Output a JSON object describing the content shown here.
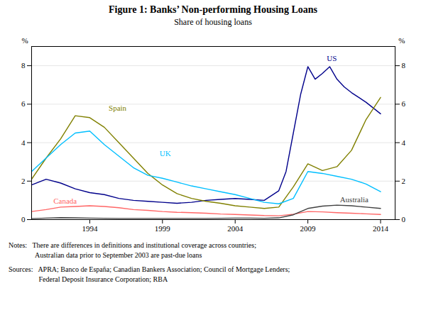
{
  "chart_data": {
    "type": "line",
    "title": "Figure 1: Banks’ Non-performing Housing Loans",
    "subtitle": "Share of housing loans",
    "ylabel": "%",
    "y2label": "%",
    "xlim": [
      1990,
      2015
    ],
    "xticks": [
      1994,
      1999,
      2004,
      2009,
      2014
    ],
    "ylim": [
      0,
      9
    ],
    "yticks": [
      0,
      2,
      4,
      6,
      8
    ],
    "grid": "y",
    "notes": "Notes:  There are differences in definitions and institutional coverage across countries;\n        Australian data prior to September 2003 are past-due loans",
    "sources": "Sources:  APRA; Banco de España; Canadian Bankers Association; Council of Mortgage Lenders;\n         Federal Deposit Insurance Corporation; RBA",
    "series": [
      {
        "name": "US",
        "color": "#00008B",
        "x": [
          1990,
          1991,
          1992,
          1993,
          1994,
          1995,
          1996,
          1997,
          1998,
          1999,
          2000,
          2001,
          2002,
          2003,
          2004,
          2005,
          2006,
          2007,
          2007.5,
          2008,
          2008.5,
          2009,
          2009.5,
          2010,
          2010.5,
          2011,
          2011.5,
          2012,
          2013,
          2014
        ],
        "values": [
          1.8,
          2.1,
          1.9,
          1.6,
          1.4,
          1.3,
          1.1,
          1.0,
          0.95,
          0.9,
          0.85,
          0.9,
          1.0,
          1.05,
          1.1,
          1.05,
          1.0,
          1.5,
          2.5,
          4.5,
          6.5,
          7.95,
          7.3,
          7.6,
          7.95,
          7.3,
          6.9,
          6.6,
          6.1,
          5.5
        ]
      },
      {
        "name": "Spain",
        "color": "#808000",
        "x": [
          1990,
          1991,
          1992,
          1993,
          1994,
          1995,
          1996,
          1997,
          1998,
          1999,
          2000,
          2001,
          2002,
          2003,
          2004,
          2005,
          2006,
          2007,
          2008,
          2009,
          2010,
          2011,
          2012,
          2013,
          2014
        ],
        "values": [
          2.1,
          3.2,
          4.2,
          5.4,
          5.3,
          4.8,
          4.0,
          3.2,
          2.4,
          1.8,
          1.35,
          1.1,
          0.95,
          0.85,
          0.72,
          0.65,
          0.58,
          0.65,
          1.7,
          2.9,
          2.55,
          2.75,
          3.6,
          5.2,
          6.35
        ]
      },
      {
        "name": "UK",
        "color": "#00BFFF",
        "x": [
          1990,
          1991,
          1992,
          1993,
          1994,
          1995,
          1996,
          1997,
          1998,
          1999,
          2000,
          2001,
          2002,
          2003,
          2004,
          2005,
          2006,
          2007,
          2008,
          2009,
          2010,
          2011,
          2012,
          2013,
          2014
        ],
        "values": [
          2.5,
          3.2,
          3.9,
          4.5,
          4.6,
          3.9,
          3.3,
          2.7,
          2.3,
          2.15,
          1.95,
          1.75,
          1.6,
          1.45,
          1.3,
          1.1,
          0.9,
          0.82,
          1.1,
          2.5,
          2.4,
          2.25,
          2.1,
          1.85,
          1.45
        ]
      },
      {
        "name": "Canada",
        "color": "#FF6666",
        "x": [
          1990,
          1991,
          1992,
          1993,
          1994,
          1995,
          1996,
          1997,
          1998,
          1999,
          2000,
          2001,
          2002,
          2003,
          2004,
          2005,
          2006,
          2007,
          2008,
          2009,
          2010,
          2011,
          2012,
          2013,
          2014
        ],
        "values": [
          0.42,
          0.52,
          0.65,
          0.68,
          0.72,
          0.68,
          0.62,
          0.52,
          0.48,
          0.42,
          0.38,
          0.36,
          0.33,
          0.29,
          0.27,
          0.24,
          0.21,
          0.2,
          0.28,
          0.42,
          0.4,
          0.36,
          0.33,
          0.3,
          0.27
        ]
      },
      {
        "name": "Australia",
        "color": "#404040",
        "x": [
          1990,
          1991,
          1992,
          1993,
          1994,
          1995,
          1996,
          1997,
          1998,
          1999,
          2000,
          2001,
          2002,
          2003,
          2004,
          2005,
          2006,
          2007,
          2008,
          2009,
          2010,
          2011,
          2012,
          2013,
          2014
        ],
        "values": [
          0.05,
          0.08,
          0.1,
          0.09,
          0.08,
          0.07,
          0.06,
          0.06,
          0.06,
          0.06,
          0.06,
          0.06,
          0.06,
          0.07,
          0.08,
          0.08,
          0.07,
          0.09,
          0.25,
          0.58,
          0.7,
          0.75,
          0.72,
          0.65,
          0.58
        ]
      }
    ],
    "annotations": [
      {
        "text": "US",
        "x": 2010.3,
        "y": 8.25,
        "color": "#00008B"
      },
      {
        "text": "Spain",
        "x": 1995.3,
        "y": 5.65,
        "color": "#808000"
      },
      {
        "text": "UK",
        "x": 1998.8,
        "y": 3.3,
        "color": "#00BFFF"
      },
      {
        "text": "Canada",
        "x": 1991.5,
        "y": 0.82,
        "color": "#FF6666"
      },
      {
        "text": "Australia",
        "x": 2011.2,
        "y": 0.9,
        "color": "#404040"
      }
    ]
  }
}
